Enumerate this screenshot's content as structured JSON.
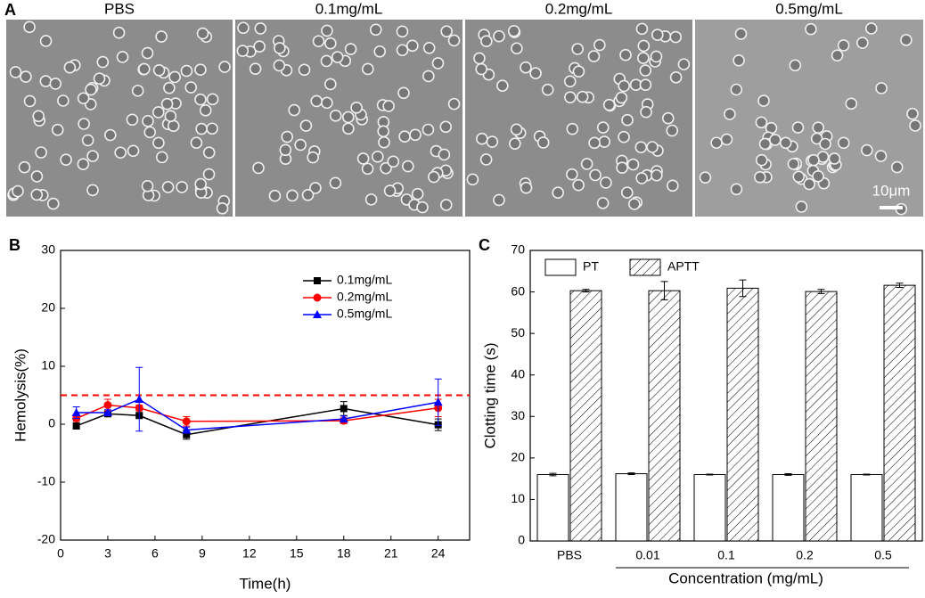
{
  "panel_a": {
    "panel": "A",
    "titles": [
      "PBS",
      "0.1mg/mL",
      "0.2mg/mL",
      "0.5mg/mL"
    ],
    "scale_bar": "10μm"
  },
  "chart_data": [
    {
      "type": "line",
      "panel": "B",
      "x_label": "Time(h)",
      "y_label": "Hemolysis(%)",
      "x": [
        1,
        3,
        5,
        8,
        18,
        24
      ],
      "series": [
        {
          "name": "0.1mg/mL",
          "color": "#000000",
          "marker": "square",
          "values": [
            -0.3,
            1.8,
            1.5,
            -1.8,
            2.7,
            -0.1
          ],
          "errors": [
            0.5,
            0.3,
            0.3,
            0.8,
            1.2,
            1.0
          ]
        },
        {
          "name": "0.2mg/mL",
          "color": "#ff0000",
          "marker": "circle",
          "values": [
            1.0,
            3.3,
            2.8,
            0.5,
            0.6,
            2.8
          ],
          "errors": [
            0.5,
            1.0,
            0.5,
            0.8,
            0.5,
            1.5
          ]
        },
        {
          "name": "0.5mg/mL",
          "color": "#0000ff",
          "marker": "triangle",
          "values": [
            2.0,
            2.0,
            4.3,
            -1.0,
            0.9,
            3.8
          ],
          "errors": [
            1.0,
            0.5,
            5.5,
            0.5,
            0.5,
            4.0
          ]
        }
      ],
      "reference_line": 5,
      "reference_color": "#ff0000",
      "xlim": [
        0,
        26
      ],
      "xticks": [
        0,
        3,
        6,
        9,
        12,
        15,
        18,
        21,
        24
      ],
      "ylim": [
        -20,
        30
      ],
      "yticks": [
        -20,
        -10,
        0,
        10,
        20,
        30
      ],
      "legend": "upper right"
    },
    {
      "type": "bar",
      "panel": "C",
      "x_label": "Concentration (mg/mL)",
      "y_label": "Clotting time (s)",
      "categories": [
        "PBS",
        "0.01",
        "0.1",
        "0.2",
        "0.5"
      ],
      "series": [
        {
          "name": "PT",
          "color": "#ffffff",
          "pattern": "none",
          "values": [
            16,
            16.2,
            16,
            16,
            16
          ],
          "errors": [
            0.3,
            0.2,
            0.1,
            0.2,
            0.1
          ]
        },
        {
          "name": "APTT",
          "color": "#ffffff",
          "pattern": "hatch",
          "values": [
            60.3,
            60.3,
            60.9,
            60.1,
            61.6
          ],
          "errors": [
            0.3,
            2.2,
            2.0,
            0.5,
            0.5
          ]
        }
      ],
      "ylim": [
        0,
        70
      ],
      "yticks": [
        0,
        10,
        20,
        30,
        40,
        50,
        60,
        70
      ],
      "legend": "upper left"
    }
  ]
}
